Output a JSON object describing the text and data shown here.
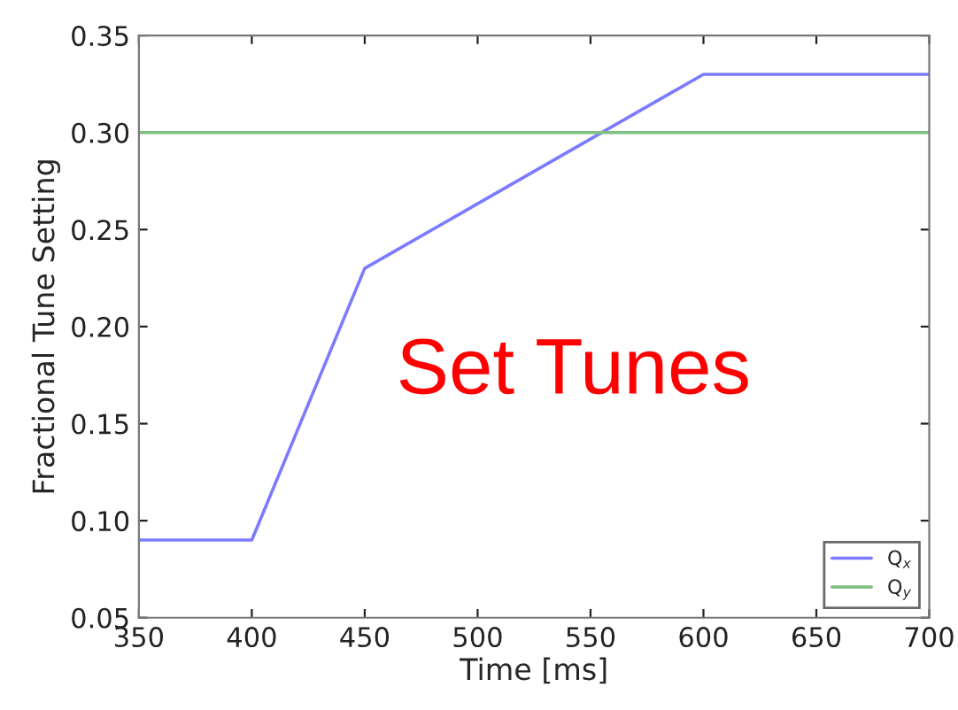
{
  "chart_data": {
    "type": "line",
    "xlabel": "Time [ms]",
    "ylabel": "Fractional Tune Setting",
    "annotations": [
      "Set Tunes"
    ],
    "series": [
      {
        "name": "Q$_{x}$",
        "color": "#7b7bff",
        "x": [
          350,
          400,
          450,
          600,
          700
        ],
        "values": [
          0.09,
          0.09,
          0.23,
          0.33,
          0.33
        ]
      },
      {
        "name": "Q$_{y}$",
        "color": "#80c080",
        "x": [
          350,
          700
        ],
        "values": [
          0.3,
          0.3
        ]
      }
    ],
    "xlim": [
      350,
      700
    ],
    "xticks": [
      350,
      400,
      450,
      500,
      550,
      600,
      650,
      700
    ],
    "ylim": [
      0.05,
      0.35
    ],
    "yticks": [
      {
        "value": 0.05,
        "label": "0.05"
      },
      {
        "value": 0.1,
        "label": "0.10"
      },
      {
        "value": 0.15,
        "label": "0.15"
      },
      {
        "value": 0.2,
        "label": "0.20"
      },
      {
        "value": 0.25,
        "label": "0.25"
      },
      {
        "value": 0.3,
        "label": "0.30"
      },
      {
        "value": 0.35,
        "label": "0.35"
      }
    ],
    "grid": false,
    "legend": "bottom right",
    "marker": "none",
    "line_style": "solid"
  }
}
